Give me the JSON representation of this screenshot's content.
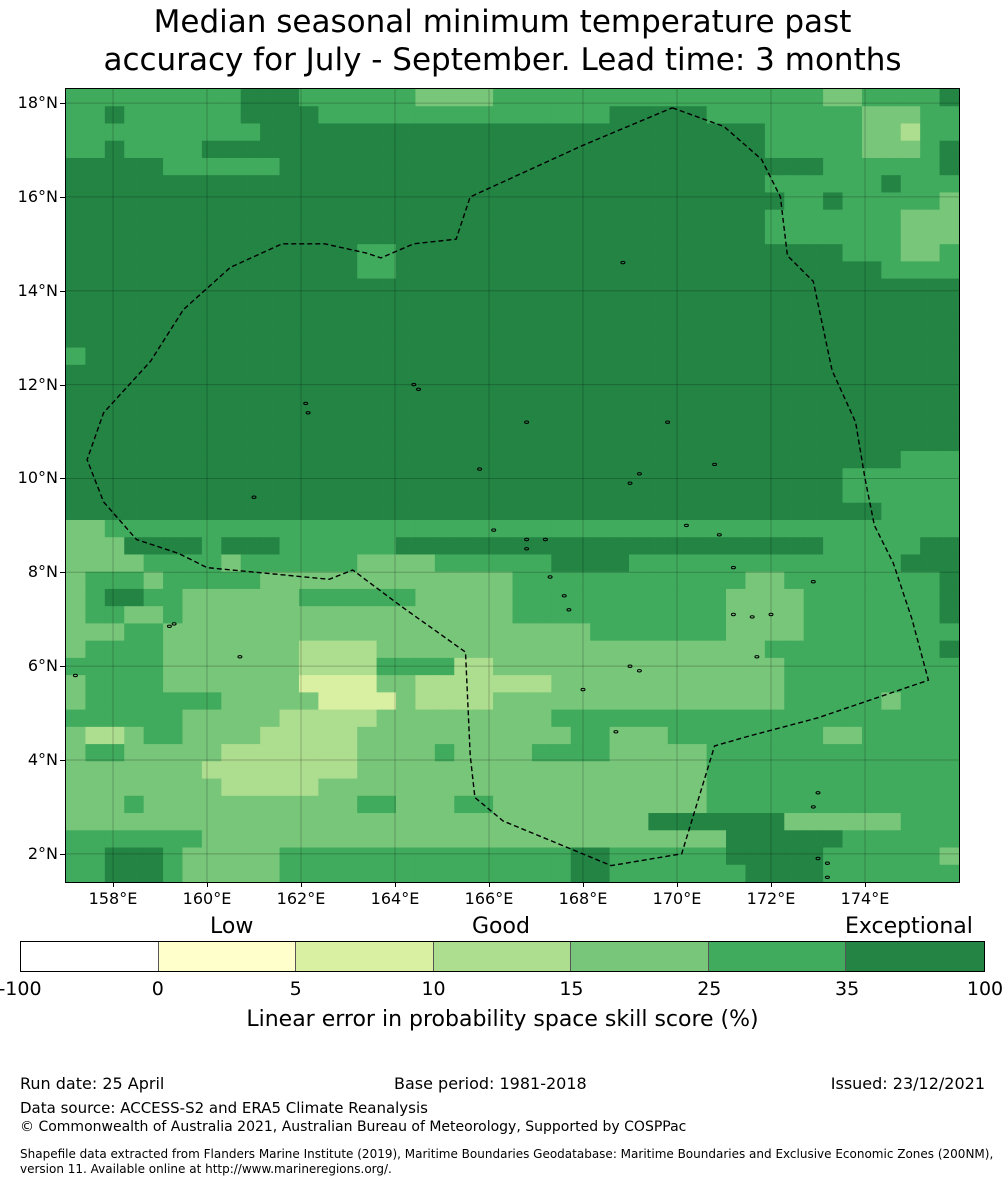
{
  "title_line1": "Median seasonal minimum temperature past",
  "title_line2": "accuracy for July - September. Lead time: 3 months",
  "map": {
    "lon_range": [
      157.0,
      176.0
    ],
    "lat_range": [
      1.4,
      18.3
    ],
    "lat_ticks": [
      "18°N",
      "16°N",
      "14°N",
      "12°N",
      "10°N",
      "8°N",
      "6°N",
      "4°N",
      "2°N"
    ],
    "lat_values": [
      18,
      16,
      14,
      12,
      10,
      8,
      6,
      4,
      2
    ],
    "lon_ticks": [
      "158°E",
      "160°E",
      "162°E",
      "164°E",
      "166°E",
      "168°E",
      "170°E",
      "172°E",
      "174°E"
    ],
    "lon_values": [
      158,
      160,
      162,
      164,
      166,
      168,
      170,
      172,
      174
    ],
    "grid_lines": true,
    "eez_boundary_lonlat": [
      [
        169.9,
        17.9
      ],
      [
        171.0,
        17.5
      ],
      [
        171.8,
        16.8
      ],
      [
        172.2,
        16.0
      ],
      [
        172.35,
        14.75
      ],
      [
        172.9,
        14.2
      ],
      [
        173.3,
        12.3
      ],
      [
        173.8,
        11.2
      ],
      [
        174.0,
        10.0
      ],
      [
        174.2,
        9.0
      ],
      [
        174.6,
        8.2
      ],
      [
        175.0,
        7.0
      ],
      [
        175.35,
        5.7
      ],
      [
        173.0,
        4.9
      ],
      [
        171.5,
        4.5
      ],
      [
        170.8,
        4.3
      ],
      [
        170.1,
        2.0
      ],
      [
        168.6,
        1.75
      ],
      [
        166.3,
        2.7
      ],
      [
        165.7,
        3.2
      ],
      [
        165.6,
        4.1
      ],
      [
        165.5,
        6.3
      ],
      [
        164.1,
        7.3
      ],
      [
        163.1,
        8.05
      ],
      [
        162.6,
        7.85
      ],
      [
        160.0,
        8.1
      ],
      [
        159.4,
        8.4
      ],
      [
        158.5,
        8.7
      ],
      [
        157.8,
        9.5
      ],
      [
        157.45,
        10.4
      ],
      [
        157.8,
        11.4
      ],
      [
        158.8,
        12.5
      ],
      [
        159.5,
        13.6
      ],
      [
        160.5,
        14.5
      ],
      [
        161.6,
        15.0
      ],
      [
        162.5,
        15.0
      ],
      [
        163.4,
        14.8
      ],
      [
        163.7,
        14.7
      ],
      [
        164.4,
        15.0
      ],
      [
        165.3,
        15.1
      ],
      [
        165.6,
        16.0
      ],
      [
        168.0,
        17.1
      ],
      [
        169.9,
        17.9
      ]
    ],
    "island_marks": "small islands and atolls",
    "cell_values_rows_north_to_south": [
      "5555555556665555554444555555555555555554455556",
      "5565555556666555555555555555666665555555544455",
      "5555555555666666666666666666666666665555544355",
      "5565555666666666666666666666666666665555544456",
      "6666655555566666666666666666666666666665555556",
      "6666666666666666666666666666666666665555556555",
      "6666666666666666666666666666666666666556555554",
      "6666666666666666666666666666666666665555555444",
      "6666666666666666666666666666666666665555555444",
      "6666666666666665566666666666666666666666555445",
      "6666666666666665566666666666666666666666665555",
      "6666666666666666666666666666666666666666666666",
      "6666666666666666666666666666666666666666666666",
      "6666666666666666666666666666666666666666666666",
      "6666666666666666666666666666666666666666666666",
      "5666666666666666666666666666666666666666666666",
      "6666666666666666666666666666666666666666666666",
      "6666666666666666666666666666666666666666666666",
      "6666666666666666666666666666666666666666666666",
      "6666666666666666666666666666666666666666666666",
      "6666666666666666666666666666666666666666666666",
      "6666666666666666666666666666666666666666666555",
      "6666666666666666666666666666666666666666555555",
      "6666666666666666666666666666666666666666555555",
      "6666666666666666666666666666666666666666665555",
      "4455555555555555555555555555555555555555555555",
      "4446666566655555566666666666666666666665555566",
      "4444555545555554444555555666655555555555555666",
      "4555455555444444444444455555555555544555555556",
      "4566554444445555554444455555555555444455555556",
      "4554454444444444444444455555555555444455555556",
      "4445544444444444444444444445555555444455555555",
      "4555544444443333444444444444444444445555555556",
      "5555544444443333555533444444444444444555555555",
      "4555544444442222443333333444444444444555555555",
      "4555555544444222243333444444444444444555554555",
      "5555554444433333444444444555555555555555555555",
      "4334554444333334444444444455444555555554455555",
      "4554444433333334444544445555444445555555555555",
      "4444444333333334444444444444444445555555555555",
      "4444444433333444444444444444444445555555555555",
      "4445444444444445544455444444444445555555555555",
      "4444444444444444444444444444446666666444444555",
      "5555555444444444444444444444444444666666555555",
      "5566654444455555555555555566555555666665555554",
      "5566654444455555555555555566555555566665555555"
    ]
  },
  "legend": {
    "qualitative": [
      "Low",
      "Good",
      "Exceptional"
    ],
    "colors": [
      "#ffffff",
      "#ffffcc",
      "#d9f0a3",
      "#addd8e",
      "#78c679",
      "#41ab5d",
      "#238443"
    ],
    "ticks": [
      "-100",
      "0",
      "5",
      "10",
      "15",
      "25",
      "35",
      "100"
    ],
    "label": "Linear error in probability space skill score (%)"
  },
  "footer": {
    "run_date": "Run date: 25 April",
    "base_period": "Base period: 1981-2018",
    "issued": "Issued: 23/12/2021",
    "data_source": "Data source: ACCESS-S2 and ERA5 Climate Reanalysis",
    "copyright": "© Commonwealth of Australia 2021, Australian Bureau of Meteorology, Supported by COSPPac",
    "shapefile_line1": "Shapefile data extracted from Flanders Marine Institute (2019), Maritime Boundaries Geodatabase: Maritime Boundaries and Exclusive Economic Zones (200NM),",
    "shapefile_line2": "version 11. Available online at http://www.marineregions.org/."
  }
}
